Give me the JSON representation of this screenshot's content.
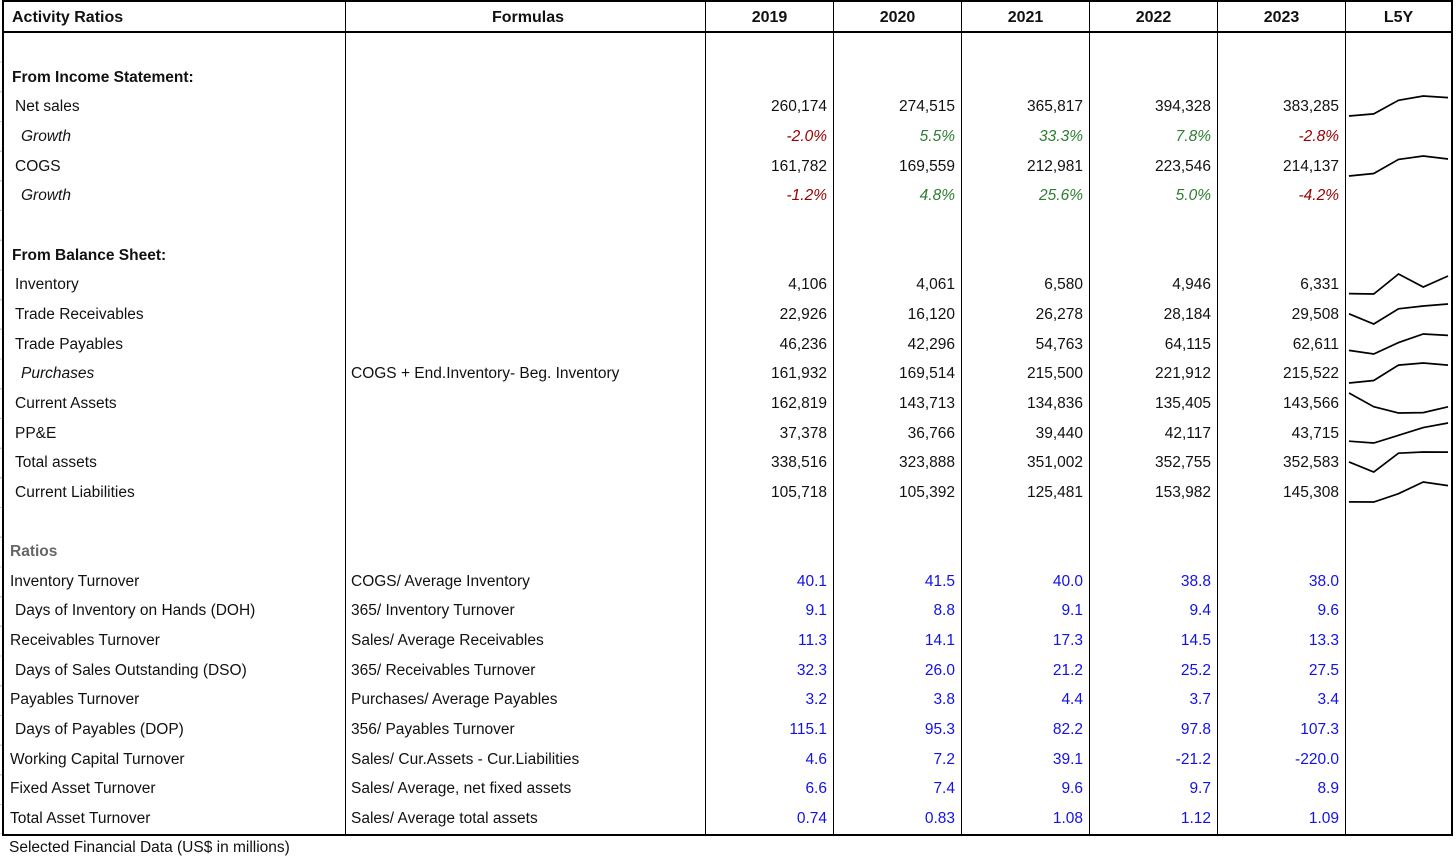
{
  "header": {
    "title": "Activity Ratios",
    "formulas_label": "Formulas",
    "years": [
      "2019",
      "2020",
      "2021",
      "2022",
      "2023"
    ],
    "l5y_label": "L5Y"
  },
  "footer_note": "Selected Financial Data (US$ in millions)",
  "colors": {
    "text": "#111111",
    "positive_growth": "#2e7d32",
    "negative_growth": "#990000",
    "ratio_value": "#1212e6",
    "section_gray": "#666666",
    "border": "#000000",
    "sparkline": "#000000"
  },
  "rows": [
    {
      "type": "spacer"
    },
    {
      "type": "section",
      "label": "From Income Statement:"
    },
    {
      "type": "data",
      "label": "Net sales",
      "indent": 1,
      "formula": "",
      "values": [
        "260,174",
        "274,515",
        "365,817",
        "394,328",
        "383,285"
      ],
      "sparkline": true
    },
    {
      "type": "growth",
      "label": "Growth",
      "indent": 2,
      "italic": true,
      "formula": "",
      "values": [
        "-2.0%",
        "5.5%",
        "33.3%",
        "7.8%",
        "-2.8%"
      ]
    },
    {
      "type": "data",
      "label": "COGS",
      "indent": 1,
      "formula": "",
      "values": [
        "161,782",
        "169,559",
        "212,981",
        "223,546",
        "214,137"
      ],
      "sparkline": true
    },
    {
      "type": "growth",
      "label": "Growth",
      "indent": 2,
      "italic": true,
      "formula": "",
      "values": [
        "-1.2%",
        "4.8%",
        "25.6%",
        "5.0%",
        "-4.2%"
      ]
    },
    {
      "type": "spacer"
    },
    {
      "type": "section",
      "label": "From Balance Sheet:"
    },
    {
      "type": "data",
      "label": "Inventory",
      "indent": 1,
      "formula": "",
      "values": [
        "4,106",
        "4,061",
        "6,580",
        "4,946",
        "6,331"
      ],
      "sparkline": true
    },
    {
      "type": "data",
      "label": "Trade Receivables",
      "indent": 1,
      "formula": "",
      "values": [
        "22,926",
        "16,120",
        "26,278",
        "28,184",
        "29,508"
      ],
      "sparkline": true
    },
    {
      "type": "data",
      "label": "Trade Payables",
      "indent": 1,
      "formula": "",
      "values": [
        "46,236",
        "42,296",
        "54,763",
        "64,115",
        "62,611"
      ],
      "sparkline": true
    },
    {
      "type": "data",
      "label": "Purchases",
      "indent": 2,
      "italic": true,
      "formula": "COGS + End.Inventory- Beg. Inventory",
      "values": [
        "161,932",
        "169,514",
        "215,500",
        "221,912",
        "215,522"
      ],
      "sparkline": true
    },
    {
      "type": "data",
      "label": "Current Assets",
      "indent": 1,
      "formula": "",
      "values": [
        "162,819",
        "143,713",
        "134,836",
        "135,405",
        "143,566"
      ],
      "sparkline": true
    },
    {
      "type": "data",
      "label": "PP&E",
      "indent": 1,
      "formula": "",
      "values": [
        "37,378",
        "36,766",
        "39,440",
        "42,117",
        "43,715"
      ],
      "sparkline": true
    },
    {
      "type": "data",
      "label": "Total assets",
      "indent": 1,
      "formula": "",
      "values": [
        "338,516",
        "323,888",
        "351,002",
        "352,755",
        "352,583"
      ],
      "sparkline": true
    },
    {
      "type": "data",
      "label": "Current Liabilities",
      "indent": 1,
      "formula": "",
      "values": [
        "105,718",
        "105,392",
        "125,481",
        "153,982",
        "145,308"
      ],
      "sparkline": true
    },
    {
      "type": "spacer"
    },
    {
      "type": "section-gray",
      "label": "Ratios"
    },
    {
      "type": "ratio",
      "label": "Inventory Turnover",
      "indent": 0,
      "formula": "COGS/ Average Inventory",
      "values": [
        "40.1",
        "41.5",
        "40.0",
        "38.8",
        "38.0"
      ]
    },
    {
      "type": "ratio",
      "label": "Days of Inventory on Hands (DOH)",
      "indent": 1,
      "formula": "365/ Inventory Turnover",
      "values": [
        "9.1",
        "8.8",
        "9.1",
        "9.4",
        "9.6"
      ]
    },
    {
      "type": "ratio",
      "label": "Receivables Turnover",
      "indent": 0,
      "formula": "Sales/ Average Receivables",
      "values": [
        "11.3",
        "14.1",
        "17.3",
        "14.5",
        "13.3"
      ]
    },
    {
      "type": "ratio",
      "label": "Days of Sales Outstanding (DSO)",
      "indent": 1,
      "formula": "365/ Receivables Turnover",
      "values": [
        "32.3",
        "26.0",
        "21.2",
        "25.2",
        "27.5"
      ]
    },
    {
      "type": "ratio",
      "label": "Payables Turnover",
      "indent": 0,
      "formula": "Purchases/ Average Payables",
      "values": [
        "3.2",
        "3.8",
        "4.4",
        "3.7",
        "3.4"
      ]
    },
    {
      "type": "ratio",
      "label": "Days of Payables (DOP)",
      "indent": 1,
      "formula": "356/ Payables Turnover",
      "values": [
        "115.1",
        "95.3",
        "82.2",
        "97.8",
        "107.3"
      ]
    },
    {
      "type": "ratio",
      "label": "Working Capital Turnover",
      "indent": 0,
      "formula": "Sales/ Cur.Assets - Cur.Liabilities",
      "values": [
        "4.6",
        "7.2",
        "39.1",
        "-21.2",
        "-220.0"
      ]
    },
    {
      "type": "ratio",
      "label": "Fixed Asset Turnover",
      "indent": 0,
      "formula": "Sales/ Average, net fixed assets",
      "values": [
        "6.6",
        "7.4",
        "9.6",
        "9.7",
        "8.9"
      ]
    },
    {
      "type": "ratio",
      "label": "Total Asset Turnover",
      "indent": 0,
      "formula": "Sales/ Average total assets",
      "values": [
        "0.74",
        "0.83",
        "1.08",
        "1.12",
        "1.09"
      ]
    }
  ]
}
